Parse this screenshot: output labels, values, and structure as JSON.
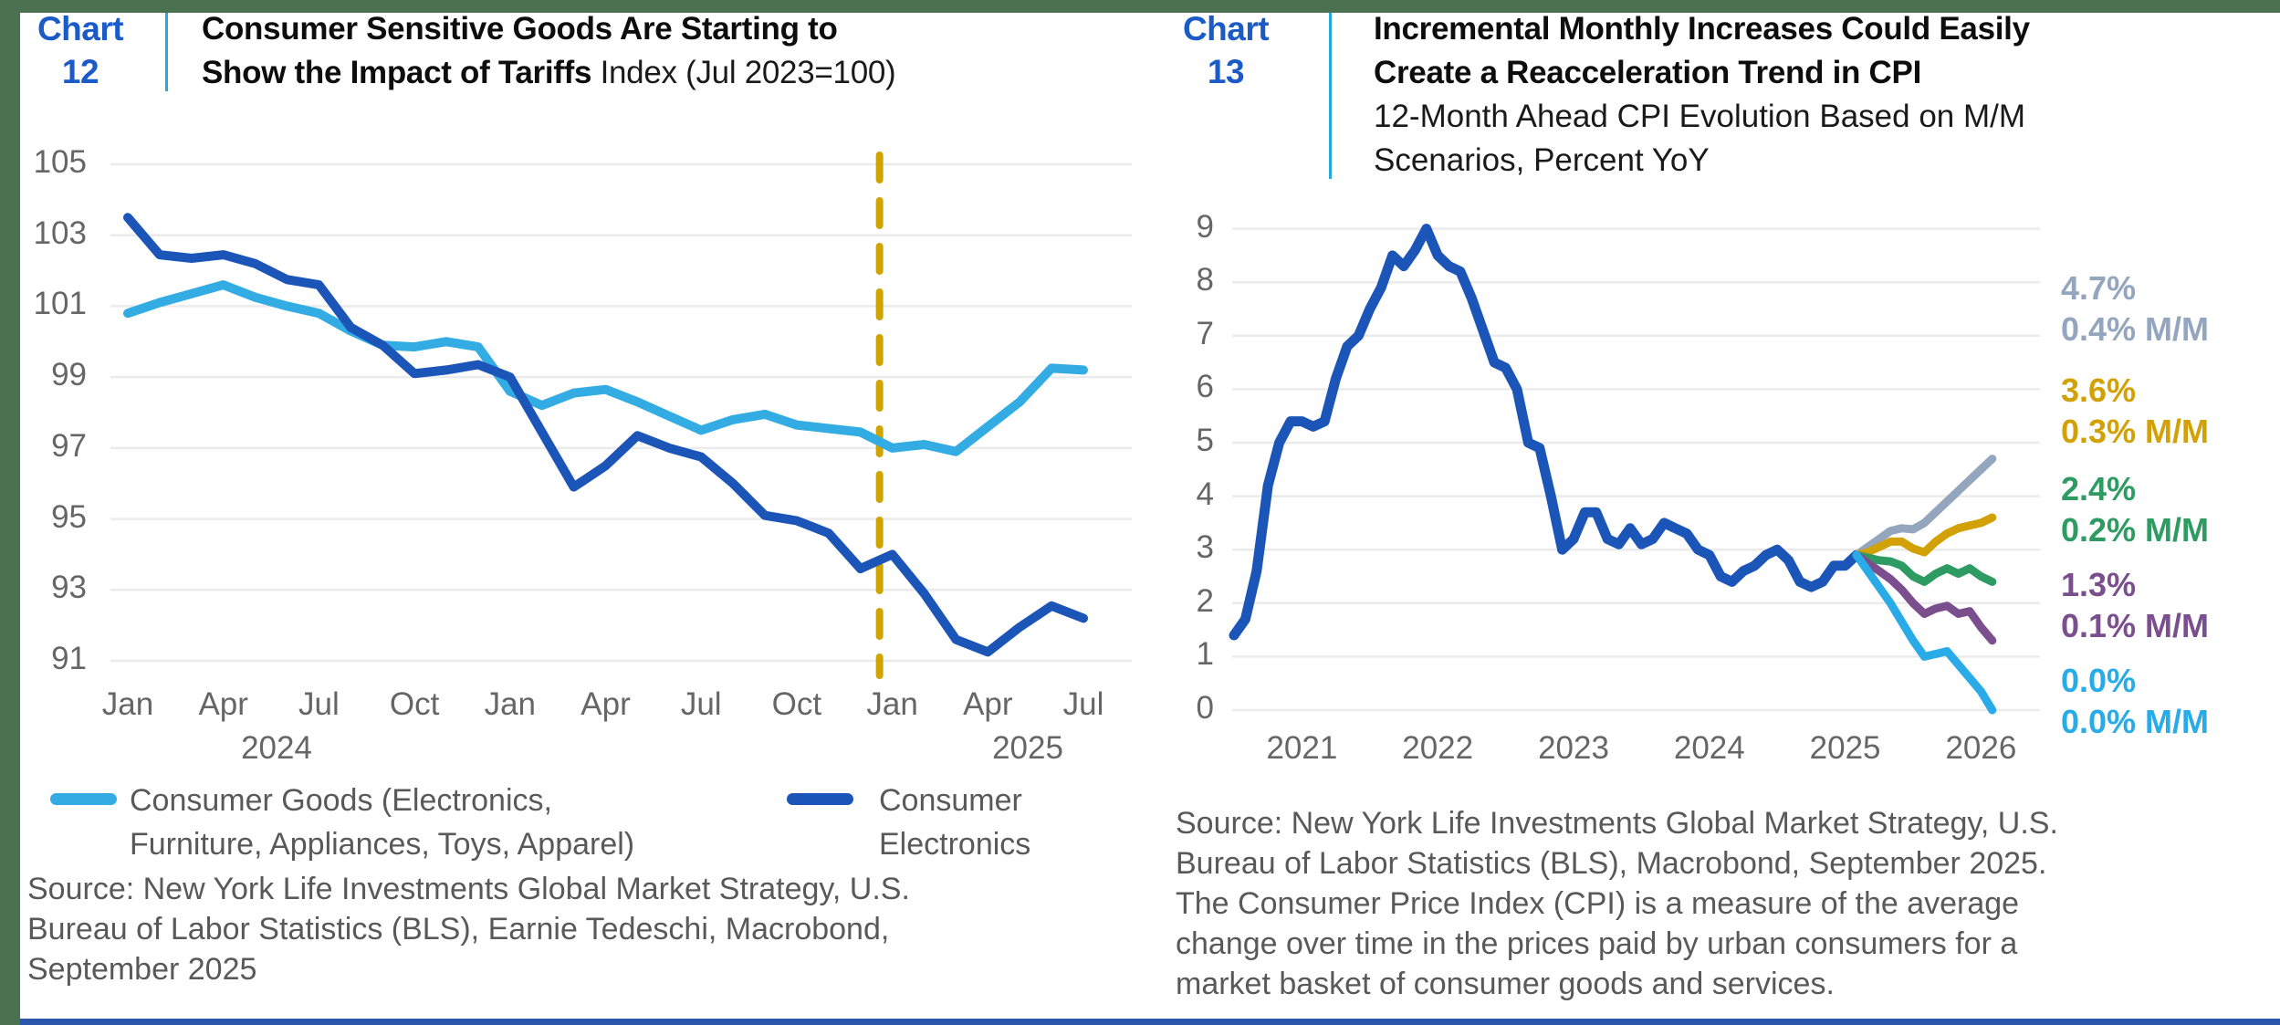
{
  "frame": {
    "band_green": "#4A7150",
    "bottom_bar_blue": "#2A57AB",
    "chart_label_blue": "#1B5BC8",
    "divider_blue": "#29A8E0",
    "gridline_gray": "#ebebeb",
    "axis_text_gray": "#666666",
    "source_text_gray": "#595959"
  },
  "chart_data": [
    {
      "id": "chart12",
      "type": "line",
      "chart_no_line1": "Chart",
      "chart_no_line2": "12",
      "title_bold_line1": "Consumer Sensitive Goods Are Starting to",
      "title_bold_line2": "Show the Impact of Tariffs",
      "title_suffix": " Index (Jul 2023=100)",
      "ylim": [
        91,
        105
      ],
      "yticks": [
        105,
        103,
        101,
        99,
        97,
        95,
        93,
        91
      ],
      "xtick_labels": [
        "Jan",
        "Apr",
        "Jul",
        "Oct",
        "Jan",
        "Apr",
        "Jul",
        "Oct",
        "Jan",
        "Apr",
        "Jul"
      ],
      "year_labels": [
        "2024",
        "2025"
      ],
      "vline": {
        "color": "#D0A400",
        "style": "dashed",
        "month_index": 23.6
      },
      "series": [
        {
          "name": "Consumer Goods (Electronics, Furniture, Appliances, Toys, Apparel)",
          "color": "#33ACE3",
          "values": [
            100.8,
            101.1,
            101.35,
            101.6,
            101.25,
            101.0,
            100.8,
            100.3,
            99.9,
            99.85,
            100.0,
            99.85,
            98.6,
            98.2,
            98.55,
            98.65,
            98.3,
            97.9,
            97.5,
            97.8,
            97.95,
            97.65,
            97.55,
            97.45,
            97.0,
            97.1,
            96.9,
            97.6,
            98.3,
            99.25,
            99.2
          ]
        },
        {
          "name": "Consumer Electronics",
          "color": "#1C55B8",
          "values": [
            103.5,
            102.45,
            102.35,
            102.45,
            102.2,
            101.75,
            101.6,
            100.4,
            99.9,
            99.1,
            99.2,
            99.35,
            99.0,
            97.45,
            95.9,
            96.5,
            97.35,
            97.0,
            96.75,
            96.0,
            95.1,
            94.95,
            94.6,
            93.6,
            94.0,
            92.9,
            91.6,
            91.25,
            91.95,
            92.55,
            92.2
          ]
        }
      ],
      "legend": [
        {
          "color": "#33ACE3",
          "label_line1": "Consumer Goods (Electronics,",
          "label_line2": "Furniture, Appliances, Toys, Apparel)"
        },
        {
          "color": "#1C55B8",
          "label_line1": "Consumer",
          "label_line2": "Electronics"
        }
      ],
      "source_lines": [
        "Source: New York Life Investments Global Market Strategy, U.S.",
        "Bureau of Labor Statistics (BLS), Earnie Tedeschi, Macrobond,",
        "September 2025"
      ]
    },
    {
      "id": "chart13",
      "type": "line",
      "chart_no_line1": "Chart",
      "chart_no_line2": "13",
      "title_bold_line1": "Incremental Monthly Increases Could Easily",
      "title_bold_line2": "Create a Reacceleration Trend in CPI",
      "subtitle_line1": "12-Month Ahead CPI Evolution Based on M/M",
      "subtitle_line2": "Scenarios, Percent YoY",
      "ylim": [
        0,
        9
      ],
      "yticks": [
        9,
        8,
        7,
        6,
        5,
        4,
        3,
        2,
        1,
        0
      ],
      "xtick_labels": [
        "2021",
        "2022",
        "2023",
        "2024",
        "2025",
        "2026"
      ],
      "main_series": {
        "name": "CPI, Percent YoY",
        "color": "#1C55B8",
        "values": [
          1.4,
          1.7,
          2.6,
          4.2,
          5.0,
          5.4,
          5.4,
          5.3,
          5.4,
          6.2,
          6.8,
          7.0,
          7.5,
          7.9,
          8.5,
          8.3,
          8.6,
          9.0,
          8.5,
          8.3,
          8.2,
          7.7,
          7.1,
          6.5,
          6.4,
          6.0,
          5.0,
          4.9,
          4.0,
          3.0,
          3.2,
          3.7,
          3.7,
          3.2,
          3.1,
          3.4,
          3.1,
          3.2,
          3.5,
          3.4,
          3.3,
          3.0,
          2.9,
          2.5,
          2.4,
          2.6,
          2.7,
          2.9,
          3.0,
          2.8,
          2.4,
          2.3,
          2.4,
          2.7,
          2.7,
          2.9
        ]
      },
      "scenarios": [
        {
          "end_label": "4.7%",
          "mm_label": "0.4% M/M",
          "color": "#93A6BE",
          "values": [
            2.9,
            3.05,
            3.2,
            3.35,
            3.4,
            3.38,
            3.5,
            3.7,
            3.9,
            4.1,
            4.3,
            4.5,
            4.7
          ]
        },
        {
          "end_label": "3.6%",
          "mm_label": "0.3% M/M",
          "color": "#D2A106",
          "values": [
            2.9,
            2.95,
            3.05,
            3.15,
            3.15,
            3.02,
            2.95,
            3.15,
            3.3,
            3.4,
            3.45,
            3.5,
            3.6
          ]
        },
        {
          "end_label": "2.4%",
          "mm_label": "0.2% M/M",
          "color": "#2E9B62",
          "values": [
            2.9,
            2.85,
            2.8,
            2.78,
            2.7,
            2.5,
            2.4,
            2.55,
            2.65,
            2.55,
            2.65,
            2.5,
            2.4
          ]
        },
        {
          "end_label": "1.3%",
          "mm_label": "0.1% M/M",
          "color": "#7B4F8E",
          "values": [
            2.9,
            2.75,
            2.6,
            2.45,
            2.25,
            2.0,
            1.8,
            1.9,
            1.95,
            1.8,
            1.85,
            1.55,
            1.3
          ]
        },
        {
          "end_label": "0.0%",
          "mm_label": "0.0% M/M",
          "color": "#29ABE8",
          "values": [
            2.9,
            2.6,
            2.3,
            2.0,
            1.65,
            1.3,
            1.0,
            1.05,
            1.1,
            0.85,
            0.6,
            0.35,
            0.0
          ]
        }
      ],
      "source_lines": [
        "Source: New York Life Investments Global Market Strategy, U.S.",
        "Bureau of Labor Statistics (BLS), Macrobond, September 2025.",
        "The Consumer Price Index (CPI) is a measure of the average",
        "change over time in the prices paid by urban consumers for a",
        "market basket of consumer goods and services."
      ]
    }
  ]
}
